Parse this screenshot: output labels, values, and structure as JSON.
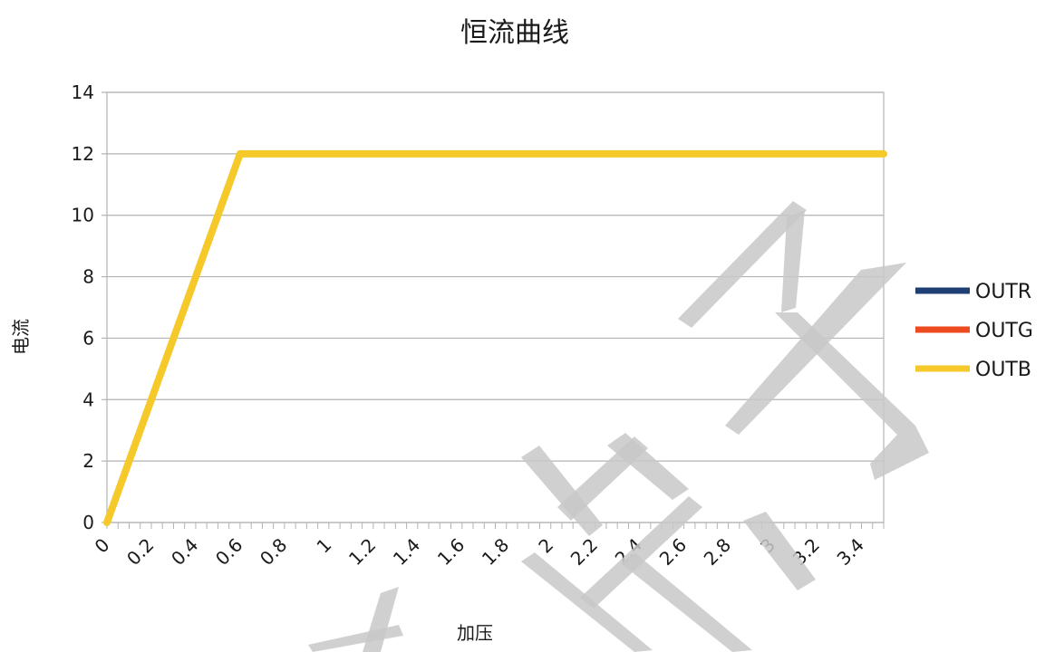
{
  "chart_data": {
    "type": "line",
    "title": "恒流曲线",
    "xlabel": "加压",
    "ylabel": "电流",
    "xlim": [
      0,
      3.5
    ],
    "ylim": [
      0,
      14
    ],
    "yticks": [
      0,
      2,
      4,
      6,
      8,
      10,
      12,
      14
    ],
    "xtick_labels": [
      "0",
      "0.2",
      "0.4",
      "0.6",
      "0.8",
      "1",
      "1.2",
      "1.4",
      "1.6",
      "1.8",
      "2",
      "2.2",
      "2.4",
      "2.6",
      "2.8",
      "3",
      "3.2",
      "3.4"
    ],
    "grid": true,
    "legend_position": "right",
    "series": [
      {
        "name": "OUTR",
        "color": "#1f3f73",
        "points": [
          [
            0,
            0
          ],
          [
            0.6,
            12
          ],
          [
            3.5,
            12
          ]
        ]
      },
      {
        "name": "OUTG",
        "color": "#ee4a1f",
        "points": [
          [
            0,
            0
          ],
          [
            0.6,
            12
          ],
          [
            3.5,
            12
          ]
        ]
      },
      {
        "name": "OUTB",
        "color": "#f5c92a",
        "points": [
          [
            0,
            0
          ],
          [
            0.6,
            12
          ],
          [
            3.5,
            12
          ]
        ]
      }
    ]
  },
  "watermark": {
    "color": "#c8c8c8"
  }
}
